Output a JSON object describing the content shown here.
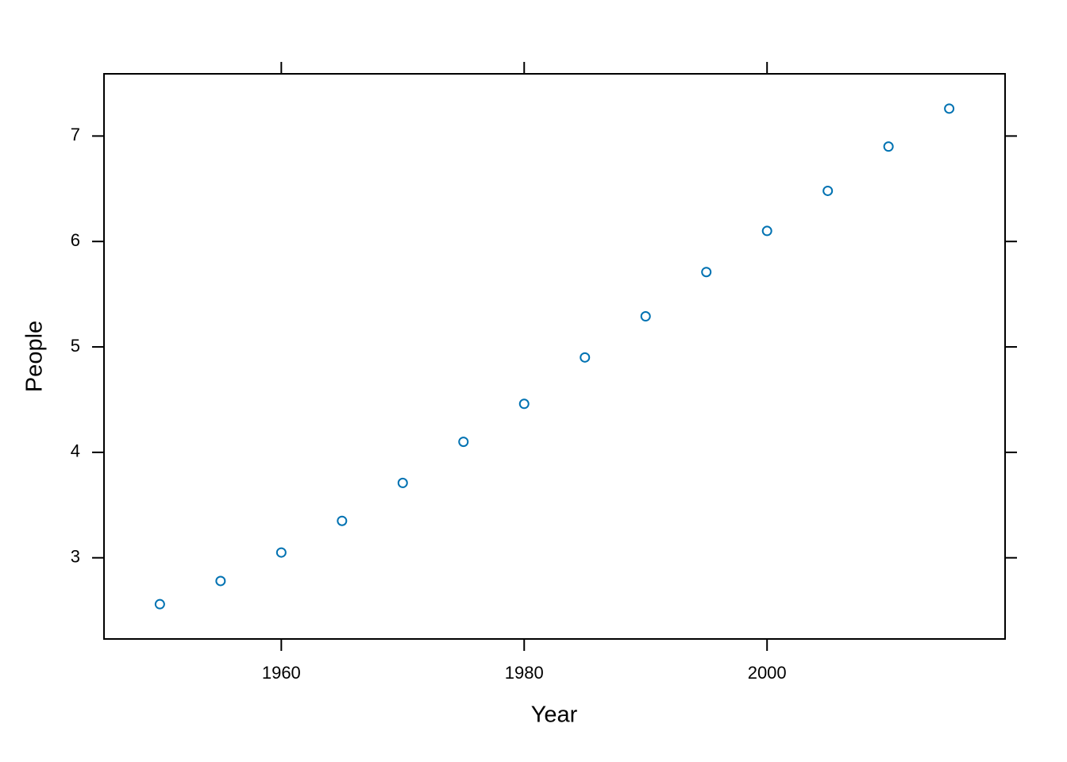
{
  "chart_data": {
    "type": "scatter",
    "x_label": "Year",
    "y_label": "People",
    "x": [
      1950,
      1955,
      1960,
      1965,
      1970,
      1975,
      1980,
      1985,
      1990,
      1995,
      2000,
      2005,
      2010,
      2015
    ],
    "series": [
      {
        "color": "#0072b2",
        "values": [
          2.56,
          2.78,
          3.05,
          3.35,
          3.71,
          4.1,
          4.46,
          4.9,
          5.29,
          5.71,
          6.1,
          6.48,
          6.9,
          7.26
        ]
      }
    ],
    "xlim": [
      1945.4,
      2019.6
    ],
    "xticks": [
      1960,
      1980,
      2000
    ],
    "ylim": [
      2.23,
      7.59
    ],
    "yticks": [
      3,
      4,
      5,
      6,
      7
    ]
  }
}
